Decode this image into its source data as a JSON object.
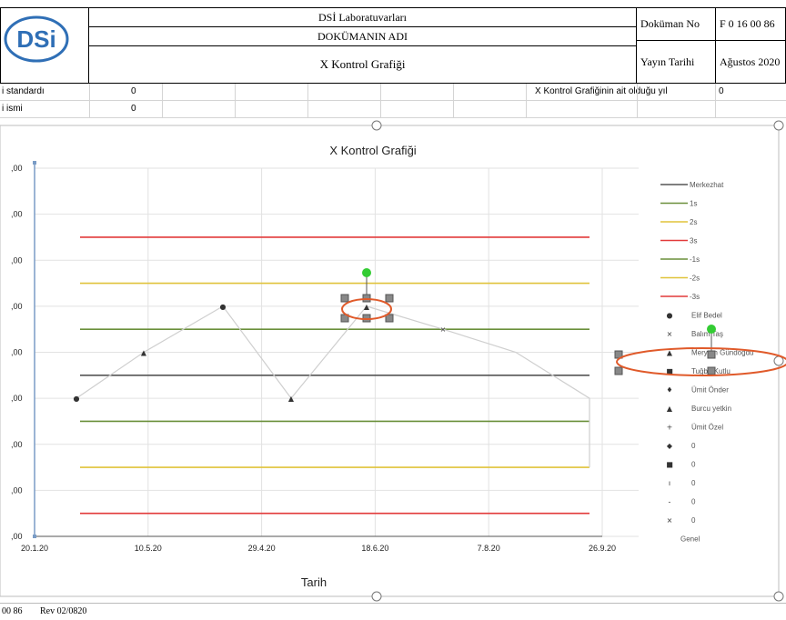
{
  "header": {
    "org_name": "DSİ Laboratuvarları",
    "doc_name_label": "DOKÜMANIN ADI",
    "doc_title": "X  Kontrol Grafiği",
    "doc_no_label": "Doküman No",
    "doc_no_value": "F 0 16 00 86",
    "pub_date_label": "Yayın Tarihi",
    "pub_date_value": "Ağustos 2020",
    "logo_text": "DSi"
  },
  "rows": {
    "row1_label": "i standardı",
    "row1_value": "0",
    "row2_label": "i ismi",
    "row2_value": "0",
    "year_label": "X Kontrol Grafiğinin ait olduğu yıl",
    "year_value": "0"
  },
  "chart_data": {
    "type": "line",
    "title": "X Kontrol Grafiği",
    "xlabel": "Tarih",
    "ylabel": "",
    "x_ticks": [
      "20.1.20",
      "10.5.20",
      "29.4.20",
      "18.6.20",
      "7.8.20",
      "26.9.20"
    ],
    "y_ticks": [
      ",00",
      ",00",
      ",00",
      ",00",
      ",00",
      ",00",
      ",00",
      ",00",
      ",00"
    ],
    "ylim": [
      0,
      8
    ],
    "control_lines": [
      {
        "name": "Merkezhat",
        "value": 3.5,
        "color": "#555555"
      },
      {
        "name": "1s",
        "value": 2.5,
        "color": "#6a8f3a"
      },
      {
        "name": "2s",
        "value": 1.5,
        "color": "#e0c33a"
      },
      {
        "name": "3s",
        "value": 0.5,
        "color": "#e23a3a"
      },
      {
        "name": "-1s",
        "value": 4.5,
        "color": "#6a8f3a"
      },
      {
        "name": "-2s",
        "value": 5.5,
        "color": "#e0c33a"
      },
      {
        "name": "-3s",
        "value": 6.5,
        "color": "#e23a3a"
      }
    ],
    "series_line": [
      3.0,
      4.0,
      5.0,
      3.0,
      5.0,
      4.5,
      4.0,
      3.0,
      3.0
    ],
    "legend": [
      {
        "label": "Merkezhat",
        "kind": "line",
        "color": "#555555"
      },
      {
        "label": "1s",
        "kind": "line",
        "color": "#6a8f3a"
      },
      {
        "label": "2s",
        "kind": "line",
        "color": "#e0c33a"
      },
      {
        "label": "3s",
        "kind": "line",
        "color": "#e23a3a"
      },
      {
        "label": "-1s",
        "kind": "line",
        "color": "#6a8f3a"
      },
      {
        "label": "-2s",
        "kind": "line",
        "color": "#e0c33a"
      },
      {
        "label": "-3s",
        "kind": "line",
        "color": "#e23a3a"
      },
      {
        "label": "Elif Bedel",
        "kind": "marker",
        "marker": "●"
      },
      {
        "label": "Balım Taş",
        "kind": "marker",
        "marker": "×"
      },
      {
        "label": "Meryem Gündoğdu",
        "kind": "marker",
        "marker": "▲"
      },
      {
        "label": "Tuğba Kutlu",
        "kind": "marker",
        "marker": "■"
      },
      {
        "label": "Ümit Önder",
        "kind": "marker",
        "marker": "♦"
      },
      {
        "label": "Burcu yetkin",
        "kind": "marker",
        "marker": "▲"
      },
      {
        "label": "Ümit Özel",
        "kind": "marker",
        "marker": "+"
      },
      {
        "label": "0",
        "kind": "marker",
        "marker": "◆"
      },
      {
        "label": "0",
        "kind": "marker",
        "marker": "■"
      },
      {
        "label": "0",
        "kind": "marker",
        "marker": "ı"
      },
      {
        "label": "0",
        "kind": "marker",
        "marker": "-"
      },
      {
        "label": "0",
        "kind": "marker",
        "marker": "×"
      },
      {
        "label": "Genel",
        "kind": "text"
      }
    ]
  },
  "footer": {
    "left": "00 86",
    "rev": "Rev 02/0820"
  }
}
